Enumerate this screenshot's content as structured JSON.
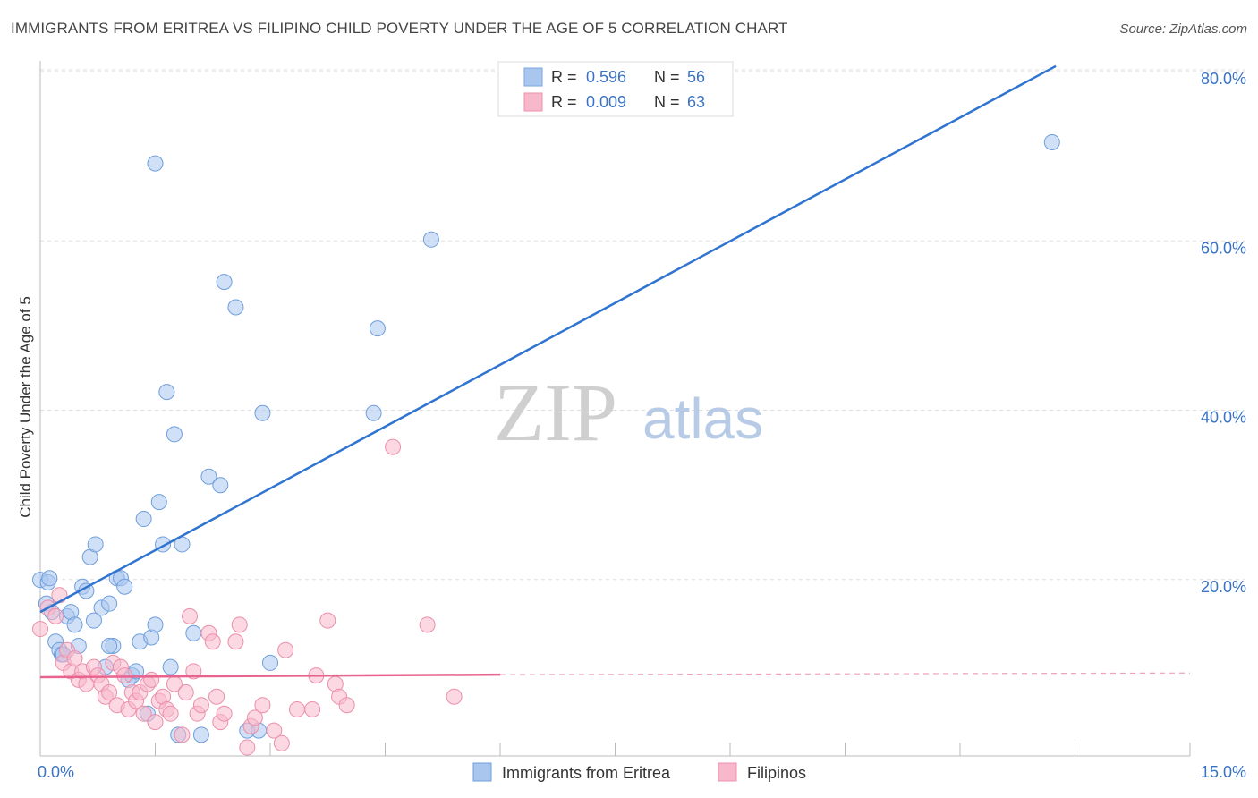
{
  "header": {
    "title": "IMMIGRANTS FROM ERITREA VS FILIPINO CHILD POVERTY UNDER THE AGE OF 5 CORRELATION CHART",
    "source": "Source: ZipAtlas.com"
  },
  "watermark": {
    "zip": "ZIP",
    "atlas": "atlas"
  },
  "legend_top": [
    {
      "r_label": "R =",
      "r_value": "0.596",
      "n_label": "N =",
      "n_value": "56",
      "color": "#a9c6ef",
      "stroke": "#7aa6e0"
    },
    {
      "r_label": "R =",
      "r_value": "0.009",
      "n_label": "N =",
      "n_value": "63",
      "color": "#f7b8cb",
      "stroke": "#ee90ad"
    }
  ],
  "chart_data": {
    "type": "scatter",
    "title": "IMMIGRANTS FROM ERITREA VS FILIPINO CHILD POVERTY UNDER THE AGE OF 5 CORRELATION CHART",
    "xlabel": "",
    "ylabel": "Child Poverty Under the Age of 5",
    "xlim": [
      0,
      15
    ],
    "ylim": [
      0,
      80
    ],
    "x_tick_labels": [
      "0.0%",
      "15.0%"
    ],
    "y_ticks": [
      20,
      40,
      60,
      80
    ],
    "y_tick_labels": [
      "20.0%",
      "40.0%",
      "60.0%",
      "80.0%"
    ],
    "grid": true,
    "legend_position": "bottom",
    "series": [
      {
        "name": "Immigrants from Eritrea",
        "color": "#a9c6ef",
        "stroke": "#6f9edb",
        "line_color": "#2f74d0",
        "R": 0.596,
        "N": 56,
        "trend": {
          "x1": 0,
          "y1": 17.0,
          "x2": 13.25,
          "y2": 81.5
        },
        "points": [
          [
            0.0,
            20.8
          ],
          [
            0.08,
            18.0
          ],
          [
            0.1,
            20.5
          ],
          [
            0.15,
            17.0
          ],
          [
            0.2,
            13.5
          ],
          [
            0.25,
            12.5
          ],
          [
            0.28,
            12.0
          ],
          [
            0.35,
            16.5
          ],
          [
            0.4,
            17.0
          ],
          [
            0.45,
            15.5
          ],
          [
            0.5,
            13.0
          ],
          [
            0.55,
            20.0
          ],
          [
            0.6,
            19.5
          ],
          [
            0.65,
            23.5
          ],
          [
            0.7,
            16.0
          ],
          [
            0.72,
            25.0
          ],
          [
            0.8,
            17.5
          ],
          [
            0.85,
            10.5
          ],
          [
            0.9,
            18.0
          ],
          [
            0.95,
            13.0
          ],
          [
            1.0,
            21.0
          ],
          [
            1.05,
            21.0
          ],
          [
            1.1,
            20.0
          ],
          [
            1.15,
            9.0
          ],
          [
            1.2,
            9.5
          ],
          [
            1.25,
            10.0
          ],
          [
            1.3,
            13.5
          ],
          [
            1.35,
            28.0
          ],
          [
            1.4,
            5.0
          ],
          [
            1.45,
            14.0
          ],
          [
            1.5,
            15.5
          ],
          [
            1.55,
            30.0
          ],
          [
            1.6,
            25.0
          ],
          [
            1.65,
            43.0
          ],
          [
            1.7,
            10.5
          ],
          [
            1.75,
            38.0
          ],
          [
            1.8,
            2.5
          ],
          [
            1.85,
            25.0
          ],
          [
            1.5,
            70.0
          ],
          [
            2.0,
            14.5
          ],
          [
            2.1,
            2.5
          ],
          [
            2.2,
            33.0
          ],
          [
            2.35,
            32.0
          ],
          [
            2.4,
            56.0
          ],
          [
            2.55,
            53.0
          ],
          [
            2.7,
            3.0
          ],
          [
            2.85,
            3.0
          ],
          [
            2.9,
            40.5
          ],
          [
            3.0,
            11.0
          ],
          [
            4.35,
            40.5
          ],
          [
            4.4,
            50.5
          ],
          [
            5.1,
            61.0
          ],
          [
            13.2,
            72.5
          ],
          [
            0.12,
            21.0
          ],
          [
            0.3,
            12.0
          ],
          [
            0.9,
            13.0
          ]
        ]
      },
      {
        "name": "Filipinos",
        "color": "#f7b8cb",
        "stroke": "#ec8fac",
        "line_color": "#e8638d",
        "R": 0.009,
        "N": 63,
        "trend": {
          "x1": 0,
          "y1": 9.3,
          "x2": 6.0,
          "y2": 9.6,
          "x2_dashed": 15.0,
          "y2_dashed": 9.8
        },
        "points": [
          [
            0.0,
            15.0
          ],
          [
            0.1,
            17.5
          ],
          [
            0.2,
            16.5
          ],
          [
            0.25,
            19.0
          ],
          [
            0.3,
            11.0
          ],
          [
            0.35,
            12.5
          ],
          [
            0.4,
            10.0
          ],
          [
            0.45,
            11.5
          ],
          [
            0.5,
            9.0
          ],
          [
            0.55,
            10.0
          ],
          [
            0.6,
            8.5
          ],
          [
            0.7,
            10.5
          ],
          [
            0.75,
            9.5
          ],
          [
            0.8,
            8.5
          ],
          [
            0.85,
            7.0
          ],
          [
            0.9,
            7.5
          ],
          [
            0.95,
            11.0
          ],
          [
            1.0,
            6.0
          ],
          [
            1.05,
            10.5
          ],
          [
            1.1,
            9.5
          ],
          [
            1.15,
            5.5
          ],
          [
            1.2,
            7.5
          ],
          [
            1.25,
            6.5
          ],
          [
            1.3,
            7.5
          ],
          [
            1.35,
            5.0
          ],
          [
            1.4,
            8.5
          ],
          [
            1.45,
            9.0
          ],
          [
            1.5,
            4.0
          ],
          [
            1.55,
            6.5
          ],
          [
            1.6,
            7.0
          ],
          [
            1.65,
            5.5
          ],
          [
            1.7,
            5.0
          ],
          [
            1.75,
            8.5
          ],
          [
            1.85,
            2.5
          ],
          [
            1.9,
            7.5
          ],
          [
            1.95,
            16.5
          ],
          [
            2.0,
            10.0
          ],
          [
            2.05,
            5.0
          ],
          [
            2.1,
            6.0
          ],
          [
            2.2,
            14.5
          ],
          [
            2.25,
            13.5
          ],
          [
            2.3,
            7.0
          ],
          [
            2.35,
            4.0
          ],
          [
            2.4,
            5.0
          ],
          [
            2.55,
            13.5
          ],
          [
            2.6,
            15.5
          ],
          [
            2.7,
            1.0
          ],
          [
            2.75,
            3.5
          ],
          [
            2.8,
            4.5
          ],
          [
            2.9,
            6.0
          ],
          [
            3.05,
            3.0
          ],
          [
            3.15,
            1.5
          ],
          [
            3.2,
            12.5
          ],
          [
            3.35,
            5.5
          ],
          [
            3.55,
            5.5
          ],
          [
            3.6,
            9.5
          ],
          [
            3.75,
            16.0
          ],
          [
            3.85,
            8.5
          ],
          [
            3.9,
            7.0
          ],
          [
            4.0,
            6.0
          ],
          [
            4.6,
            36.5
          ],
          [
            5.05,
            15.5
          ],
          [
            5.4,
            7.0
          ]
        ]
      }
    ]
  }
}
